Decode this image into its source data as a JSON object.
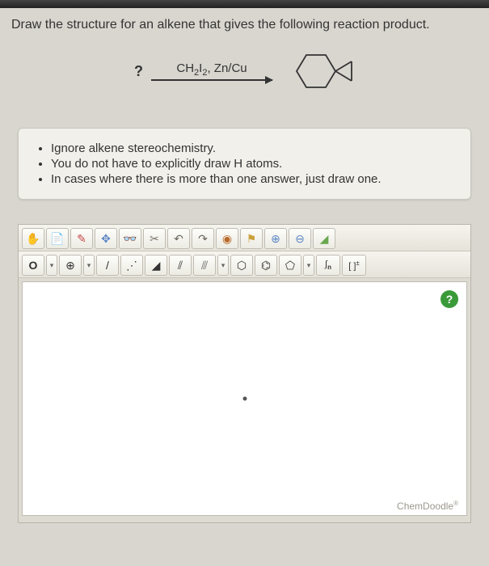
{
  "question": "Draw the structure for an alkene that gives the following reaction product.",
  "reaction": {
    "unknown_label": "?",
    "reagent_html": "CH₂I₂, Zn/Cu"
  },
  "notes": [
    "Ignore alkene stereochemistry.",
    "You do not have to explicitly draw H atoms.",
    "In cases where there is more than one answer, just draw one."
  ],
  "toolbar_row1": [
    {
      "name": "hand-icon",
      "glyph": "✋",
      "color": "#d99a2b"
    },
    {
      "name": "document-icon",
      "glyph": "📄",
      "color": "#5a86c4"
    },
    {
      "name": "pencil-icon",
      "glyph": "✎",
      "color": "#c64a4a"
    },
    {
      "name": "move-icon",
      "glyph": "✥",
      "color": "#5a86c4"
    },
    {
      "name": "glasses-icon",
      "glyph": "👓",
      "color": "#5a86c4"
    },
    {
      "name": "scissors-icon",
      "glyph": "✂",
      "color": "#7a756a"
    },
    {
      "name": "undo-icon",
      "glyph": "↶",
      "color": "#6a665b"
    },
    {
      "name": "redo-icon",
      "glyph": "↷",
      "color": "#6a665b"
    },
    {
      "name": "atom-tool-icon",
      "glyph": "◉",
      "color": "#b86a2a"
    },
    {
      "name": "flag-icon",
      "glyph": "⚑",
      "color": "#caa23a"
    },
    {
      "name": "zoom-in-icon",
      "glyph": "⊕",
      "color": "#5a86c4"
    },
    {
      "name": "zoom-out-icon",
      "glyph": "⊖",
      "color": "#5a86c4"
    },
    {
      "name": "color-icon",
      "glyph": "◢",
      "color": "#6aa84f"
    }
  ],
  "toolbar_row2": [
    {
      "name": "oxygen-label",
      "glyph": "O",
      "color": "#333"
    },
    {
      "name": "dropdown-1",
      "glyph": "▾",
      "color": "#666"
    },
    {
      "name": "charge-icon",
      "glyph": "⊕",
      "color": "#333"
    },
    {
      "name": "dropdown-2",
      "glyph": "▾",
      "color": "#666"
    },
    {
      "name": "single-bond-icon",
      "glyph": "/",
      "color": "#333"
    },
    {
      "name": "dotted-bond-icon",
      "glyph": "⋰",
      "color": "#333"
    },
    {
      "name": "wedge-bond-icon",
      "glyph": "◢",
      "color": "#333"
    },
    {
      "name": "double-bond-icon",
      "glyph": "⫽",
      "color": "#333"
    },
    {
      "name": "striped-bond-icon",
      "glyph": "⫻",
      "color": "#666"
    },
    {
      "name": "dropdown-3",
      "glyph": "▾",
      "color": "#666"
    },
    {
      "name": "hexagon-icon",
      "glyph": "⬡",
      "color": "#333"
    },
    {
      "name": "benzene-icon",
      "glyph": "⌬",
      "color": "#333"
    },
    {
      "name": "pentagon-icon",
      "glyph": "⬠",
      "color": "#333"
    },
    {
      "name": "dropdown-4",
      "glyph": "▾",
      "color": "#666"
    },
    {
      "name": "integral-n-icon",
      "glyph": "∫n",
      "color": "#333"
    },
    {
      "name": "bracket-charge-icon",
      "glyph": "[ ]±",
      "color": "#333"
    }
  ],
  "canvas": {
    "help_label": "?",
    "brand": "ChemDoodle"
  },
  "colors": {
    "page_bg": "#d9d6cf",
    "box_bg": "#f2f0ea",
    "border": "#c9c6be",
    "canvas_bg": "#ffffff",
    "help_bg": "#3a9a3a"
  }
}
